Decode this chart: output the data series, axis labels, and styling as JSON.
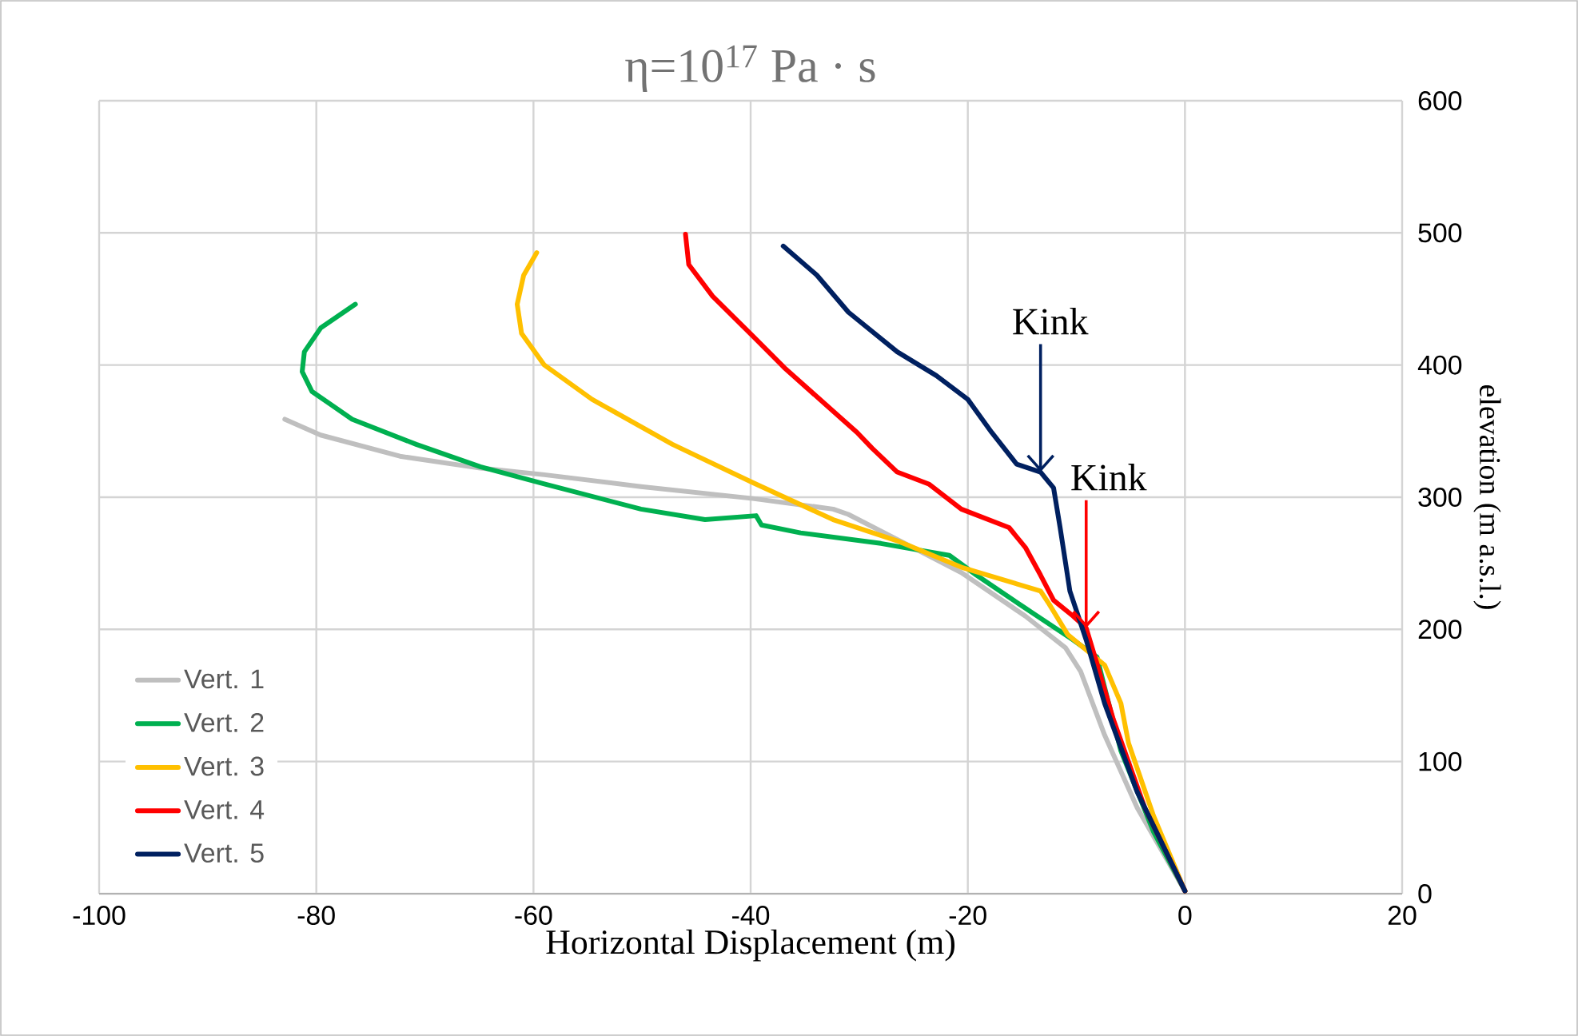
{
  "chart_data": {
    "type": "line",
    "title": "η=10$^{17}$ Pa · s",
    "xlabel": "Horizontal Displacement (m)",
    "ylabel": "elevation (m a.s.l.)",
    "xlim": [
      -100,
      20
    ],
    "xticks": [
      -100,
      -80,
      -60,
      -40,
      -20,
      0,
      20
    ],
    "ylim": [
      0,
      600
    ],
    "yticks": [
      0,
      100,
      200,
      300,
      400,
      500,
      600
    ],
    "grid": true,
    "legend": "bottom left",
    "marker": "none",
    "line_style": "solid",
    "series": [
      {
        "name": "Vert. 1",
        "color": "#bfbfbf",
        "x": [
          -82.9,
          -79.6,
          -72.3,
          -64.9,
          -59,
          -50.1,
          -39.8,
          -32.4,
          -31,
          -26.5,
          -20.6,
          -14.7,
          -11,
          -9.6,
          -7.4,
          -4.4,
          0
        ],
        "values": [
          359,
          347,
          331,
          322,
          317,
          308,
          299,
          291,
          287,
          268,
          243,
          210,
          186,
          168,
          120,
          65,
          2
        ]
      },
      {
        "name": "Vert. 2",
        "color": "#00b050",
        "x": [
          -76.4,
          -79.6,
          -81.1,
          -81.3,
          -80.4,
          -76.7,
          -70.8,
          -64.9,
          -59,
          -50.1,
          -44.2,
          -39.5,
          -39,
          -35.4,
          -28,
          -21.7,
          -19.2,
          -14.7,
          -10.3,
          -8.1,
          -7.4,
          -5.9,
          -2.9,
          0
        ],
        "values": [
          446,
          428,
          410,
          395,
          380,
          359,
          340,
          323,
          310,
          291,
          283,
          286,
          279,
          273,
          265,
          256,
          241,
          216,
          192,
          179,
          156,
          108,
          47,
          2
        ]
      },
      {
        "name": "Vert. 3",
        "color": "#ffc000",
        "x": [
          -59.7,
          -60.9,
          -61.5,
          -61.1,
          -59,
          -54.6,
          -47.2,
          -39.8,
          -32.4,
          -26.5,
          -20.6,
          -13.3,
          -12.5,
          -10.8,
          -7.4,
          -5.9,
          -5.2,
          -2.9,
          0
        ],
        "values": [
          485,
          468,
          446,
          424,
          400,
          374,
          340,
          311,
          283,
          267,
          247,
          229,
          219,
          196,
          173,
          144,
          114,
          59,
          2
        ]
      },
      {
        "name": "Vert. 4",
        "color": "#ff0000",
        "x": [
          -46,
          -45.7,
          -43.5,
          -39.8,
          -36.9,
          -33.9,
          -30.2,
          -28.8,
          -26.5,
          -23.6,
          -20.6,
          -16.2,
          -14.7,
          -13.3,
          -12.1,
          -10.3,
          -9.1,
          -8.1,
          -6.6,
          -3.7,
          0
        ],
        "values": [
          499,
          476,
          452,
          422,
          398,
          376,
          349,
          337,
          319,
          310,
          291,
          277,
          262,
          241,
          222,
          210,
          201,
          174,
          132,
          65,
          2
        ]
      },
      {
        "name": "Vert. 5",
        "color": "#002060",
        "x": [
          -37,
          -33.9,
          -31,
          -26.5,
          -22.9,
          -20,
          -17.8,
          -15.5,
          -13.3,
          -12.1,
          -11.5,
          -10.6,
          -9.1,
          -7.4,
          -4.4,
          0
        ],
        "values": [
          490,
          468,
          440,
          410,
          392,
          374,
          349,
          325,
          319,
          307,
          277,
          229,
          192,
          144,
          77,
          2
        ]
      }
    ],
    "annotations": [
      {
        "text": "Kink",
        "x": -13.3,
        "y": 319
      },
      {
        "text": "Kink",
        "x": -9.1,
        "y": 201
      }
    ]
  }
}
